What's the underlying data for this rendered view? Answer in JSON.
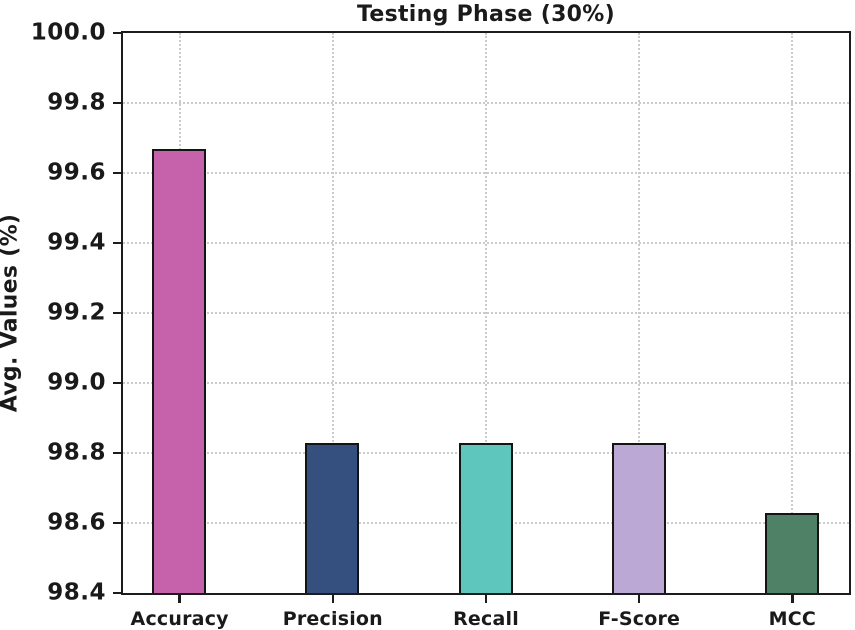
{
  "figure": {
    "background": "#ffffff",
    "spine_color": "#1c1c1c",
    "text_color": "#1a1a1a"
  },
  "chart_data": {
    "type": "bar",
    "title": "Testing Phase (30%)",
    "xlabel": "",
    "ylabel": "Avg. Values (%)",
    "categories": [
      "Accuracy",
      "Precision",
      "Recall",
      "F-Score",
      "MCC"
    ],
    "values": [
      99.67,
      98.83,
      98.83,
      98.83,
      98.63
    ],
    "bar_colors": [
      "#c662ac",
      "#35507e",
      "#5ec6bc",
      "#bca8d4",
      "#4f8167"
    ],
    "bar_edge_color": "#141414",
    "ylim": [
      98.4,
      100.0
    ],
    "ytick_step": 0.2,
    "ytick_labels": [
      "100.0",
      "99.8",
      "99.6",
      "99.4",
      "99.2",
      "99.0",
      "98.8",
      "98.6",
      "98.4"
    ],
    "grid": "dotted",
    "grid_color": "#cbcbcb",
    "legend": "none"
  }
}
